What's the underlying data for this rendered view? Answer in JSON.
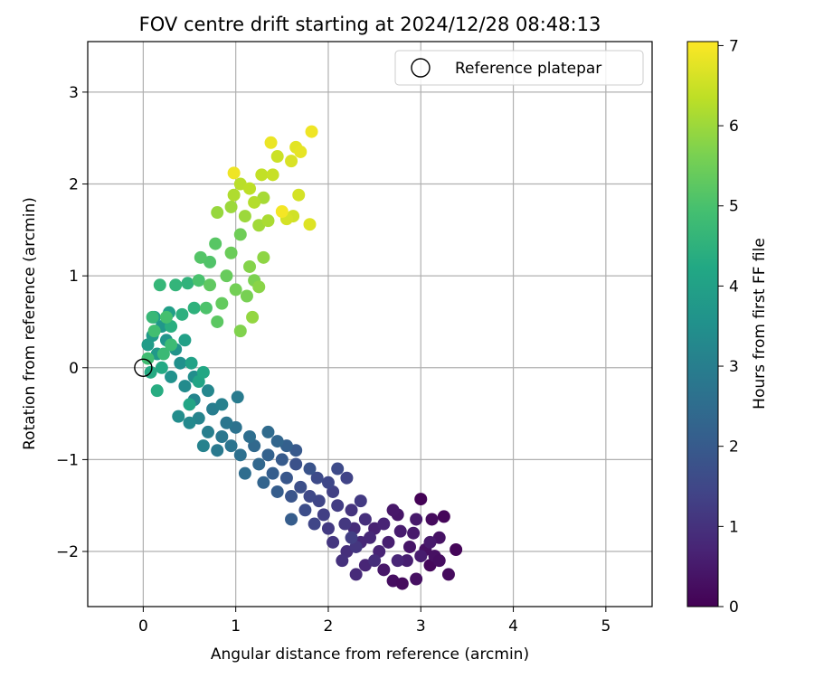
{
  "chart_data": {
    "type": "scatter",
    "title": "FOV centre drift starting at 2024/12/28 08:48:13",
    "xlabel": "Angular distance from reference (arcmin)",
    "ylabel": "Rotation from reference (arcmin)",
    "xlim": [
      -0.6,
      5.5
    ],
    "ylim": [
      -2.6,
      3.55
    ],
    "xticks": [
      0,
      1,
      2,
      3,
      4,
      5
    ],
    "xtick_labels": [
      "0",
      "1",
      "2",
      "3",
      "4",
      "5"
    ],
    "yticks": [
      -2,
      -1,
      0,
      1,
      2,
      3
    ],
    "ytick_labels": [
      "−2",
      "−1",
      "0",
      "1",
      "2",
      "3"
    ],
    "grid": true,
    "legend": {
      "position": "top-right",
      "entries": [
        "Reference platepar"
      ]
    },
    "reference_point": {
      "x": 0,
      "y": 0,
      "label": "Reference platepar"
    },
    "colorbar": {
      "label": "Hours from first FF file",
      "colormap": "viridis",
      "range": [
        0,
        7.05
      ],
      "ticks": [
        0,
        1,
        2,
        3,
        4,
        5,
        6,
        7
      ],
      "tick_labels": [
        "0",
        "1",
        "2",
        "3",
        "4",
        "5",
        "6",
        "7"
      ]
    },
    "series": [
      {
        "columns": [
          "x",
          "y",
          "hours"
        ],
        "points": [
          [
            3.0,
            -1.43,
            0.05
          ],
          [
            3.25,
            -1.62,
            0.1
          ],
          [
            3.38,
            -1.98,
            0.1
          ],
          [
            3.1,
            -2.15,
            0.15
          ],
          [
            3.12,
            -1.65,
            0.2
          ],
          [
            3.3,
            -2.25,
            0.2
          ],
          [
            2.7,
            -2.32,
            0.25
          ],
          [
            2.95,
            -2.3,
            0.3
          ],
          [
            3.05,
            -1.98,
            0.3
          ],
          [
            3.2,
            -1.85,
            0.35
          ],
          [
            2.88,
            -1.95,
            0.4
          ],
          [
            2.75,
            -1.6,
            0.4
          ],
          [
            2.6,
            -2.2,
            0.45
          ],
          [
            2.92,
            -1.8,
            0.5
          ],
          [
            3.1,
            -1.9,
            0.5
          ],
          [
            2.78,
            -1.78,
            0.55
          ],
          [
            3.0,
            -2.05,
            0.55
          ],
          [
            2.65,
            -1.9,
            0.6
          ],
          [
            2.85,
            -2.1,
            0.6
          ],
          [
            2.5,
            -1.75,
            0.65
          ],
          [
            3.15,
            -2.05,
            0.3
          ],
          [
            2.8,
            -2.35,
            0.2
          ],
          [
            2.7,
            -1.55,
            0.45
          ],
          [
            2.95,
            -1.65,
            0.5
          ],
          [
            3.2,
            -2.1,
            0.25
          ],
          [
            2.55,
            -2.0,
            0.7
          ],
          [
            2.6,
            -1.7,
            0.7
          ],
          [
            2.75,
            -2.1,
            0.75
          ],
          [
            2.4,
            -2.15,
            0.75
          ],
          [
            2.45,
            -1.85,
            0.8
          ],
          [
            2.35,
            -1.9,
            0.8
          ],
          [
            2.3,
            -2.25,
            0.85
          ],
          [
            2.5,
            -2.1,
            0.9
          ],
          [
            2.28,
            -1.75,
            0.9
          ],
          [
            2.2,
            -2.0,
            0.95
          ],
          [
            2.4,
            -1.65,
            0.95
          ],
          [
            2.15,
            -2.1,
            1.0
          ],
          [
            2.25,
            -1.55,
            1.05
          ],
          [
            2.3,
            -1.95,
            1.1
          ],
          [
            2.05,
            -1.9,
            1.1
          ],
          [
            2.18,
            -1.7,
            1.15
          ],
          [
            2.35,
            -1.45,
            1.2
          ],
          [
            2.0,
            -1.75,
            1.2
          ],
          [
            2.1,
            -1.5,
            1.25
          ],
          [
            2.25,
            -1.85,
            1.3
          ],
          [
            1.95,
            -1.6,
            1.3
          ],
          [
            2.05,
            -1.35,
            1.35
          ],
          [
            2.2,
            -1.2,
            1.4
          ],
          [
            1.9,
            -1.45,
            1.45
          ],
          [
            1.85,
            -1.7,
            1.45
          ],
          [
            2.0,
            -1.25,
            1.5
          ],
          [
            1.8,
            -1.4,
            1.55
          ],
          [
            1.88,
            -1.2,
            1.6
          ],
          [
            2.1,
            -1.1,
            1.6
          ],
          [
            1.75,
            -1.55,
            1.65
          ],
          [
            1.7,
            -1.3,
            1.7
          ],
          [
            1.65,
            -1.05,
            1.75
          ],
          [
            1.8,
            -1.1,
            1.8
          ],
          [
            1.6,
            -1.4,
            1.85
          ],
          [
            1.55,
            -1.2,
            1.9
          ],
          [
            1.65,
            -0.9,
            1.95
          ],
          [
            1.5,
            -1.0,
            2.0
          ],
          [
            1.45,
            -1.35,
            2.05
          ],
          [
            1.6,
            -1.65,
            2.05
          ],
          [
            1.4,
            -1.15,
            2.1
          ],
          [
            1.55,
            -0.85,
            2.15
          ],
          [
            1.35,
            -0.95,
            2.2
          ],
          [
            1.3,
            -1.25,
            2.25
          ],
          [
            1.45,
            -0.8,
            2.3
          ],
          [
            1.25,
            -1.05,
            2.35
          ],
          [
            1.2,
            -0.85,
            2.4
          ],
          [
            1.35,
            -0.7,
            2.45
          ],
          [
            1.1,
            -1.15,
            2.5
          ],
          [
            1.15,
            -0.75,
            2.55
          ],
          [
            1.05,
            -0.95,
            2.6
          ],
          [
            1.0,
            -0.65,
            2.65
          ],
          [
            0.95,
            -0.85,
            2.7
          ],
          [
            0.9,
            -0.6,
            2.75
          ],
          [
            0.85,
            -0.75,
            2.8
          ],
          [
            0.8,
            -0.9,
            2.85
          ],
          [
            1.02,
            -0.32,
            2.9
          ],
          [
            0.75,
            -0.45,
            2.95
          ],
          [
            0.7,
            -0.7,
            3.0
          ],
          [
            0.85,
            -0.4,
            3.05
          ],
          [
            0.65,
            -0.85,
            3.1
          ],
          [
            0.6,
            -0.55,
            3.15
          ],
          [
            0.55,
            -0.35,
            3.2
          ],
          [
            0.7,
            -0.25,
            3.25
          ],
          [
            0.5,
            -0.6,
            3.3
          ],
          [
            0.45,
            -0.2,
            3.35
          ],
          [
            0.38,
            -0.53,
            3.4
          ],
          [
            0.55,
            -0.1,
            3.45
          ],
          [
            0.4,
            0.05,
            3.5
          ],
          [
            0.3,
            -0.1,
            3.55
          ],
          [
            0.35,
            0.2,
            3.6
          ],
          [
            0.25,
            0.3,
            3.65
          ],
          [
            0.2,
            0.45,
            3.7
          ],
          [
            0.15,
            0.15,
            3.75
          ],
          [
            0.1,
            0.35,
            3.8
          ],
          [
            0.05,
            0.25,
            3.85
          ],
          [
            0.12,
            0.55,
            3.9
          ],
          [
            0.28,
            0.6,
            3.95
          ],
          [
            0.45,
            0.3,
            4.0
          ],
          [
            0.52,
            0.05,
            4.05
          ],
          [
            0.6,
            -0.15,
            4.1
          ],
          [
            0.5,
            -0.4,
            4.15
          ],
          [
            0.65,
            -0.05,
            4.2
          ],
          [
            0.2,
            0.0,
            4.25
          ],
          [
            0.08,
            -0.05,
            4.3
          ],
          [
            0.15,
            -0.25,
            4.35
          ],
          [
            0.3,
            0.45,
            4.4
          ],
          [
            0.42,
            0.58,
            4.45
          ],
          [
            0.55,
            0.65,
            4.5
          ],
          [
            0.48,
            0.92,
            4.55
          ],
          [
            0.35,
            0.9,
            4.6
          ],
          [
            0.18,
            0.9,
            4.65
          ],
          [
            0.1,
            0.55,
            4.7
          ],
          [
            0.22,
            0.15,
            4.75
          ],
          [
            0.3,
            0.25,
            4.8
          ],
          [
            0.05,
            0.1,
            4.85
          ],
          [
            0.12,
            0.4,
            4.9
          ],
          [
            0.25,
            0.55,
            4.95
          ],
          [
            0.6,
            0.95,
            5.0
          ],
          [
            0.68,
            0.65,
            5.05
          ],
          [
            0.72,
            1.15,
            5.1
          ],
          [
            0.62,
            1.2,
            5.15
          ],
          [
            0.78,
            1.35,
            5.2
          ],
          [
            0.8,
            0.5,
            5.25
          ],
          [
            0.72,
            0.9,
            5.3
          ],
          [
            0.85,
            0.7,
            5.35
          ],
          [
            0.9,
            1.0,
            5.4
          ],
          [
            0.95,
            1.25,
            5.45
          ],
          [
            1.05,
            1.45,
            5.5
          ],
          [
            1.0,
            0.85,
            5.55
          ],
          [
            1.12,
            0.78,
            5.6
          ],
          [
            1.2,
            0.95,
            5.65
          ],
          [
            1.05,
            0.4,
            5.7
          ],
          [
            1.15,
            1.1,
            5.75
          ],
          [
            1.25,
            0.88,
            5.8
          ],
          [
            1.3,
            1.2,
            5.85
          ],
          [
            1.18,
            0.55,
            5.9
          ],
          [
            0.8,
            1.69,
            5.95
          ],
          [
            0.95,
            1.75,
            6.0
          ],
          [
            1.1,
            1.65,
            6.0
          ],
          [
            1.25,
            1.55,
            6.05
          ],
          [
            1.3,
            1.85,
            6.1
          ],
          [
            1.35,
            1.6,
            6.15
          ],
          [
            0.98,
            1.88,
            6.2
          ],
          [
            1.2,
            1.8,
            6.25
          ],
          [
            1.05,
            2.0,
            6.3
          ],
          [
            1.15,
            1.95,
            6.35
          ],
          [
            1.28,
            2.1,
            6.4
          ],
          [
            1.4,
            2.1,
            6.45
          ],
          [
            1.45,
            2.3,
            6.5
          ],
          [
            1.62,
            1.65,
            6.55
          ],
          [
            1.55,
            1.62,
            6.6
          ],
          [
            1.68,
            1.88,
            6.6
          ],
          [
            1.6,
            2.25,
            6.65
          ],
          [
            1.8,
            1.56,
            6.7
          ],
          [
            1.65,
            2.4,
            6.75
          ],
          [
            1.7,
            2.35,
            6.8
          ],
          [
            1.38,
            2.45,
            6.85
          ],
          [
            1.82,
            2.57,
            6.9
          ],
          [
            0.98,
            2.12,
            6.9
          ],
          [
            1.5,
            1.7,
            6.95
          ]
        ]
      }
    ]
  }
}
